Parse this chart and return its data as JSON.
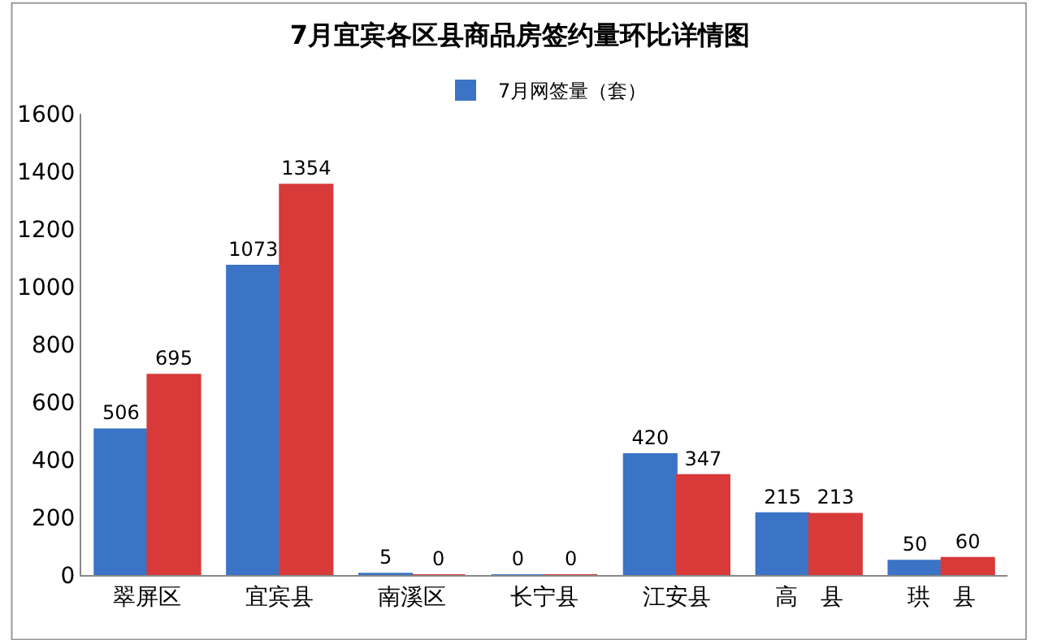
{
  "chart_data": {
    "type": "bar",
    "title": "7月宜宾各区县商品房签约量环比详情图",
    "categories": [
      "翠屏区",
      "宜宾县",
      "南溪区",
      "长宁县",
      "江安县",
      "高　县",
      "珙　县"
    ],
    "series": [
      {
        "name": "7月网签量（套）",
        "color": "#3b74c6",
        "values": [
          506,
          1073,
          5,
          0,
          420,
          215,
          50
        ]
      },
      {
        "color": "#d83a3a",
        "values": [
          695,
          1354,
          0,
          0,
          347,
          213,
          60
        ]
      }
    ],
    "ylim": [
      0,
      1600
    ],
    "yticks": [
      0,
      200,
      400,
      600,
      800,
      1000,
      1200,
      1400,
      1600
    ],
    "data_labels": true,
    "legend": "top"
  }
}
